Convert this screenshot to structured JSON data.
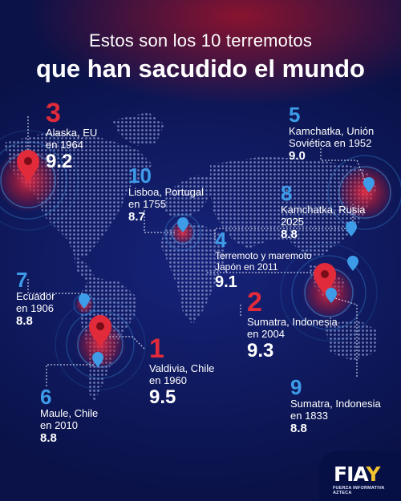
{
  "title_line1": "Estos son los 10 terremotos",
  "title_line2": "que han sacudido el mundo",
  "quakes": [
    {
      "rank": "3",
      "place": "Alaska, EU\nen 1964",
      "magnitude": "9.2",
      "color": "red"
    },
    {
      "rank": "10",
      "place": "Lisboa, Portugal\nen 1755",
      "magnitude": "8.7",
      "color": "blue"
    },
    {
      "rank": "5",
      "place": "Kamchatka, Unión\nSoviética en 1952",
      "magnitude": "9.0",
      "color": "blue"
    },
    {
      "rank": "8",
      "place": "Kamchatka, Rusia\n2025",
      "magnitude": "8.8",
      "color": "blue"
    },
    {
      "rank": "4",
      "place": "Terremoto y maremoto\nJapón en 2011",
      "magnitude": "9.1",
      "color": "blue"
    },
    {
      "rank": "7",
      "place": "Ecuador\nen 1906",
      "magnitude": "8.8",
      "color": "blue"
    },
    {
      "rank": "2",
      "place": "Sumatra, Indonesia\nen 2004",
      "magnitude": "9.3",
      "color": "red"
    },
    {
      "rank": "1",
      "place": "Valdivia, Chile\nen 1960",
      "magnitude": "9.5",
      "color": "red"
    },
    {
      "rank": "6",
      "place": "Maule, Chile\nen 2010",
      "magnitude": "8.8",
      "color": "blue"
    },
    {
      "rank": "9",
      "place": "Sumatra, Indonesia\nen 1833",
      "magnitude": "8.8",
      "color": "blue"
    }
  ],
  "logo": {
    "word": "FIA",
    "mark": "Y",
    "subtitle": "FUERZA INFORMATIVA AZTECA"
  },
  "colors": {
    "background": "#0b1450",
    "red": "#e12a3a",
    "blue": "#3d9be8",
    "logo_accent": "#f2c230"
  }
}
